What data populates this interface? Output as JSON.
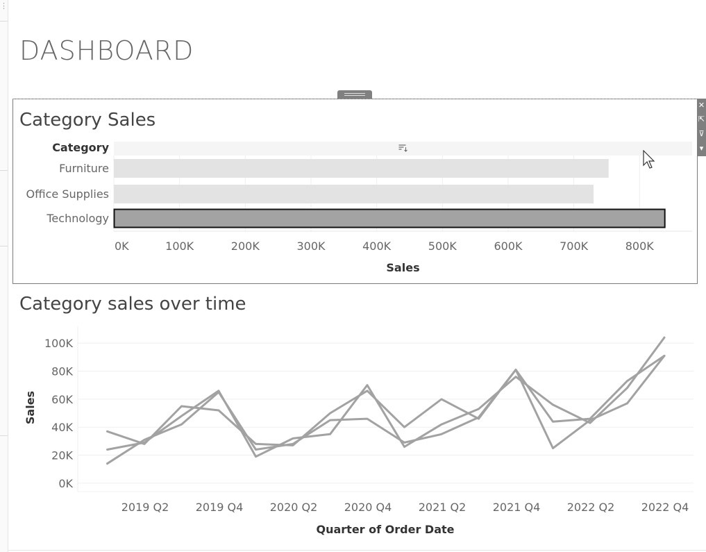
{
  "dashboard": {
    "title": "DASHBOARD"
  },
  "colors": {
    "bar": "#e3e3e3",
    "bar_selected": "#a3a3a3",
    "line": "#a2a2a2",
    "grid": "#efefef",
    "text": "#666666"
  },
  "toolbar": {
    "icons": [
      "close-icon",
      "open-icon",
      "filter-icon",
      "dropdown-icon"
    ],
    "glyphs": [
      "✕",
      "⇱",
      "⊽",
      "▾"
    ]
  },
  "chart_data": [
    {
      "type": "bar",
      "title": "Category Sales",
      "row_header": "Category",
      "categories": [
        "Furniture",
        "Office Supplies",
        "Technology"
      ],
      "values": [
        753000,
        730000,
        839000
      ],
      "selected": "Technology",
      "xlabel": "Sales",
      "xlim": [
        0,
        880000
      ],
      "xticks": [
        0,
        100000,
        200000,
        300000,
        400000,
        500000,
        600000,
        700000,
        800000
      ],
      "xtick_labels": [
        "0K",
        "100K",
        "200K",
        "300K",
        "400K",
        "500K",
        "600K",
        "700K",
        "800K"
      ],
      "sort_icon": "sort-icon"
    },
    {
      "type": "line",
      "title": "Category sales over time",
      "xlabel": "Quarter of Order Date",
      "ylabel": "Sales",
      "x": [
        "2019 Q1",
        "2019 Q2",
        "2019 Q3",
        "2019 Q4",
        "2020 Q1",
        "2020 Q2",
        "2020 Q3",
        "2020 Q4",
        "2021 Q1",
        "2021 Q2",
        "2021 Q3",
        "2021 Q4",
        "2022 Q1",
        "2022 Q2",
        "2022 Q3",
        "2022 Q4"
      ],
      "xtick_labels": [
        "2019 Q2",
        "2019 Q4",
        "2020 Q2",
        "2020 Q4",
        "2021 Q2",
        "2021 Q4",
        "2022 Q2",
        "2022 Q4"
      ],
      "xtick_indices": [
        1,
        3,
        5,
        7,
        9,
        11,
        13,
        15
      ],
      "ylim": [
        -6000,
        112000
      ],
      "yticks": [
        0,
        20000,
        40000,
        60000,
        80000,
        100000
      ],
      "ytick_labels": [
        "0K",
        "20K",
        "40K",
        "60K",
        "80K",
        "100K"
      ],
      "series": [
        {
          "values": [
            37000,
            28000,
            55000,
            52000,
            28000,
            27000,
            50000,
            66000,
            40000,
            60000,
            46000,
            81000,
            44000,
            46000,
            73000,
            91000
          ]
        },
        {
          "values": [
            24000,
            29000,
            48000,
            66000,
            19000,
            32000,
            35000,
            70000,
            26000,
            42000,
            53000,
            76000,
            56000,
            43000,
            68000,
            104000
          ]
        },
        {
          "values": [
            14000,
            31000,
            42000,
            65000,
            24000,
            28000,
            45000,
            46000,
            29000,
            35000,
            47000,
            81000,
            25000,
            45000,
            57000,
            91000
          ]
        }
      ]
    }
  ]
}
